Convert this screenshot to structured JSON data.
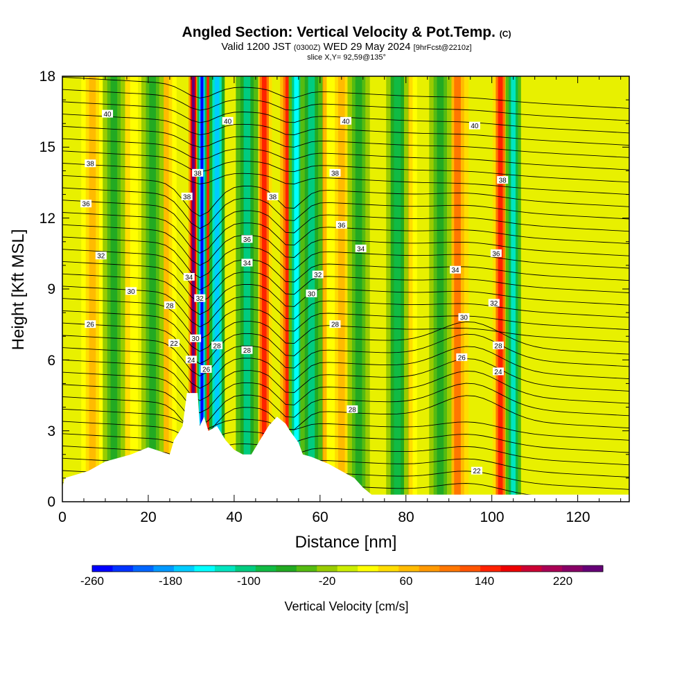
{
  "header": {
    "title": "Angled Section: Vertical Velocity & Pot.Temp.",
    "title_mark": "(C)",
    "valid_prefix": "Valid 1200 JST",
    "valid_utc": "(0300Z)",
    "valid_date": "WED 29 May 2024",
    "valid_fcst": "[9hrFcst@2210z]",
    "slice": "slice X,Y= 92,59@135°"
  },
  "chart_data": {
    "type": "heatmap",
    "xlabel": "Distance [nm]",
    "ylabel": "Height [Kft MSL]",
    "xlim": [
      0,
      132
    ],
    "ylim": [
      0,
      18
    ],
    "x_ticks": [
      0,
      20,
      40,
      60,
      80,
      100,
      120
    ],
    "y_ticks": [
      0,
      3,
      6,
      9,
      12,
      15,
      18
    ],
    "colorbar": {
      "title": "Vertical Velocity [cm/s]",
      "range": [
        -260,
        260
      ],
      "tick_values": [
        -260,
        -180,
        -100,
        -20,
        60,
        140,
        220
      ],
      "colors": [
        "#0000ff",
        "#0033ff",
        "#0066ff",
        "#0099ff",
        "#00ccff",
        "#00ffff",
        "#00e5c0",
        "#00cc80",
        "#11bb44",
        "#22aa22",
        "#55bb11",
        "#99cc00",
        "#ccee00",
        "#ffff00",
        "#ffdd00",
        "#ffbb00",
        "#ff9900",
        "#ff7700",
        "#ff5500",
        "#ff2200",
        "#ee0000",
        "#cc0033",
        "#aa0055",
        "#880066",
        "#660077"
      ]
    },
    "updraft_cores": [
      {
        "x": 7,
        "strength": 60
      },
      {
        "x": 15,
        "strength": 40
      },
      {
        "x": 24,
        "strength": 60
      },
      {
        "x": 30.5,
        "strength": 250
      },
      {
        "x": 34,
        "strength": 150
      },
      {
        "x": 47,
        "strength": 140
      },
      {
        "x": 52.5,
        "strength": 150
      },
      {
        "x": 60,
        "strength": 80
      },
      {
        "x": 65,
        "strength": 60
      },
      {
        "x": 80,
        "strength": 60
      },
      {
        "x": 92,
        "strength": 100
      },
      {
        "x": 102,
        "strength": 140
      }
    ],
    "downdraft_cores": [
      {
        "x": 12,
        "strength": -60
      },
      {
        "x": 21,
        "strength": -70
      },
      {
        "x": 32.5,
        "strength": -240
      },
      {
        "x": 36,
        "strength": -170
      },
      {
        "x": 43,
        "strength": -100
      },
      {
        "x": 54.5,
        "strength": -140
      },
      {
        "x": 58,
        "strength": -100
      },
      {
        "x": 69,
        "strength": -70
      },
      {
        "x": 78,
        "strength": -80
      },
      {
        "x": 88,
        "strength": -60
      },
      {
        "x": 105,
        "strength": -130
      }
    ],
    "isentrope_labels": [
      {
        "value": "40",
        "x": 10.5,
        "y": 16.4
      },
      {
        "value": "38",
        "x": 6.5,
        "y": 14.3
      },
      {
        "value": "36",
        "x": 5.5,
        "y": 12.6
      },
      {
        "value": "32",
        "x": 9,
        "y": 10.4
      },
      {
        "value": "30",
        "x": 16,
        "y": 8.9
      },
      {
        "value": "28",
        "x": 25,
        "y": 8.3
      },
      {
        "value": "26",
        "x": 6.5,
        "y": 7.5
      },
      {
        "value": "22",
        "x": 26,
        "y": 6.7
      },
      {
        "value": "40",
        "x": 38.5,
        "y": 16.1
      },
      {
        "value": "38",
        "x": 31.5,
        "y": 13.9
      },
      {
        "value": "38",
        "x": 29,
        "y": 12.9
      },
      {
        "value": "34",
        "x": 29.5,
        "y": 9.5
      },
      {
        "value": "32",
        "x": 32,
        "y": 8.6
      },
      {
        "value": "30",
        "x": 31,
        "y": 6.9
      },
      {
        "value": "24",
        "x": 30,
        "y": 6.0
      },
      {
        "value": "26",
        "x": 33.5,
        "y": 5.6
      },
      {
        "value": "28",
        "x": 36,
        "y": 6.6
      },
      {
        "value": "36",
        "x": 43,
        "y": 11.1
      },
      {
        "value": "34",
        "x": 43,
        "y": 10.1
      },
      {
        "value": "28",
        "x": 43,
        "y": 6.4
      },
      {
        "value": "40",
        "x": 66,
        "y": 16.1
      },
      {
        "value": "38",
        "x": 63.5,
        "y": 13.9
      },
      {
        "value": "38",
        "x": 49,
        "y": 12.9
      },
      {
        "value": "36",
        "x": 65,
        "y": 11.7
      },
      {
        "value": "34",
        "x": 69.5,
        "y": 10.7
      },
      {
        "value": "32",
        "x": 59.5,
        "y": 9.6
      },
      {
        "value": "30",
        "x": 58,
        "y": 8.8
      },
      {
        "value": "28",
        "x": 63.5,
        "y": 7.5
      },
      {
        "value": "28",
        "x": 67.5,
        "y": 3.9
      },
      {
        "value": "40",
        "x": 96,
        "y": 15.9
      },
      {
        "value": "38",
        "x": 102.5,
        "y": 13.6
      },
      {
        "value": "36",
        "x": 101,
        "y": 10.5
      },
      {
        "value": "34",
        "x": 91.5,
        "y": 9.8
      },
      {
        "value": "32",
        "x": 100.5,
        "y": 8.4
      },
      {
        "value": "30",
        "x": 93.5,
        "y": 7.8
      },
      {
        "value": "28",
        "x": 101.5,
        "y": 6.6
      },
      {
        "value": "26",
        "x": 93,
        "y": 6.1
      },
      {
        "value": "24",
        "x": 101.5,
        "y": 5.5
      },
      {
        "value": "22",
        "x": 96.5,
        "y": 1.3
      }
    ],
    "terrain": [
      [
        0,
        0.6
      ],
      [
        0.5,
        1.0
      ],
      [
        6,
        1.3
      ],
      [
        10,
        1.7
      ],
      [
        16,
        2.0
      ],
      [
        20,
        2.3
      ],
      [
        25,
        2.0
      ],
      [
        26,
        2.6
      ],
      [
        28,
        3.2
      ],
      [
        29,
        4.6
      ],
      [
        31.5,
        4.6
      ],
      [
        32,
        3.2
      ],
      [
        33,
        3.6
      ],
      [
        34,
        3.0
      ],
      [
        36,
        3.2
      ],
      [
        38,
        2.6
      ],
      [
        40,
        2.2
      ],
      [
        42,
        2.0
      ],
      [
        44,
        2.0
      ],
      [
        46,
        2.6
      ],
      [
        48,
        3.2
      ],
      [
        50,
        3.6
      ],
      [
        52,
        3.3
      ],
      [
        53,
        3.0
      ],
      [
        55,
        2.5
      ],
      [
        56,
        2.0
      ],
      [
        58,
        1.9
      ],
      [
        62,
        1.6
      ],
      [
        65,
        1.3
      ],
      [
        68,
        1.0
      ],
      [
        70,
        0.6
      ],
      [
        72,
        0.3
      ],
      [
        132,
        0.3
      ]
    ]
  },
  "axes": {
    "x_tick_labels": [
      "0",
      "20",
      "40",
      "60",
      "80",
      "100",
      "120"
    ],
    "y_tick_labels": [
      "0",
      "3",
      "6",
      "9",
      "12",
      "15",
      "18"
    ],
    "xlabel": "Distance [nm]",
    "ylabel": "Height [Kft MSL]"
  },
  "colorbar_labels": [
    "-260",
    "-180",
    "-100",
    "-20",
    "60",
    "140",
    "220"
  ],
  "colorbar_title": "Vertical Velocity [cm/s]"
}
